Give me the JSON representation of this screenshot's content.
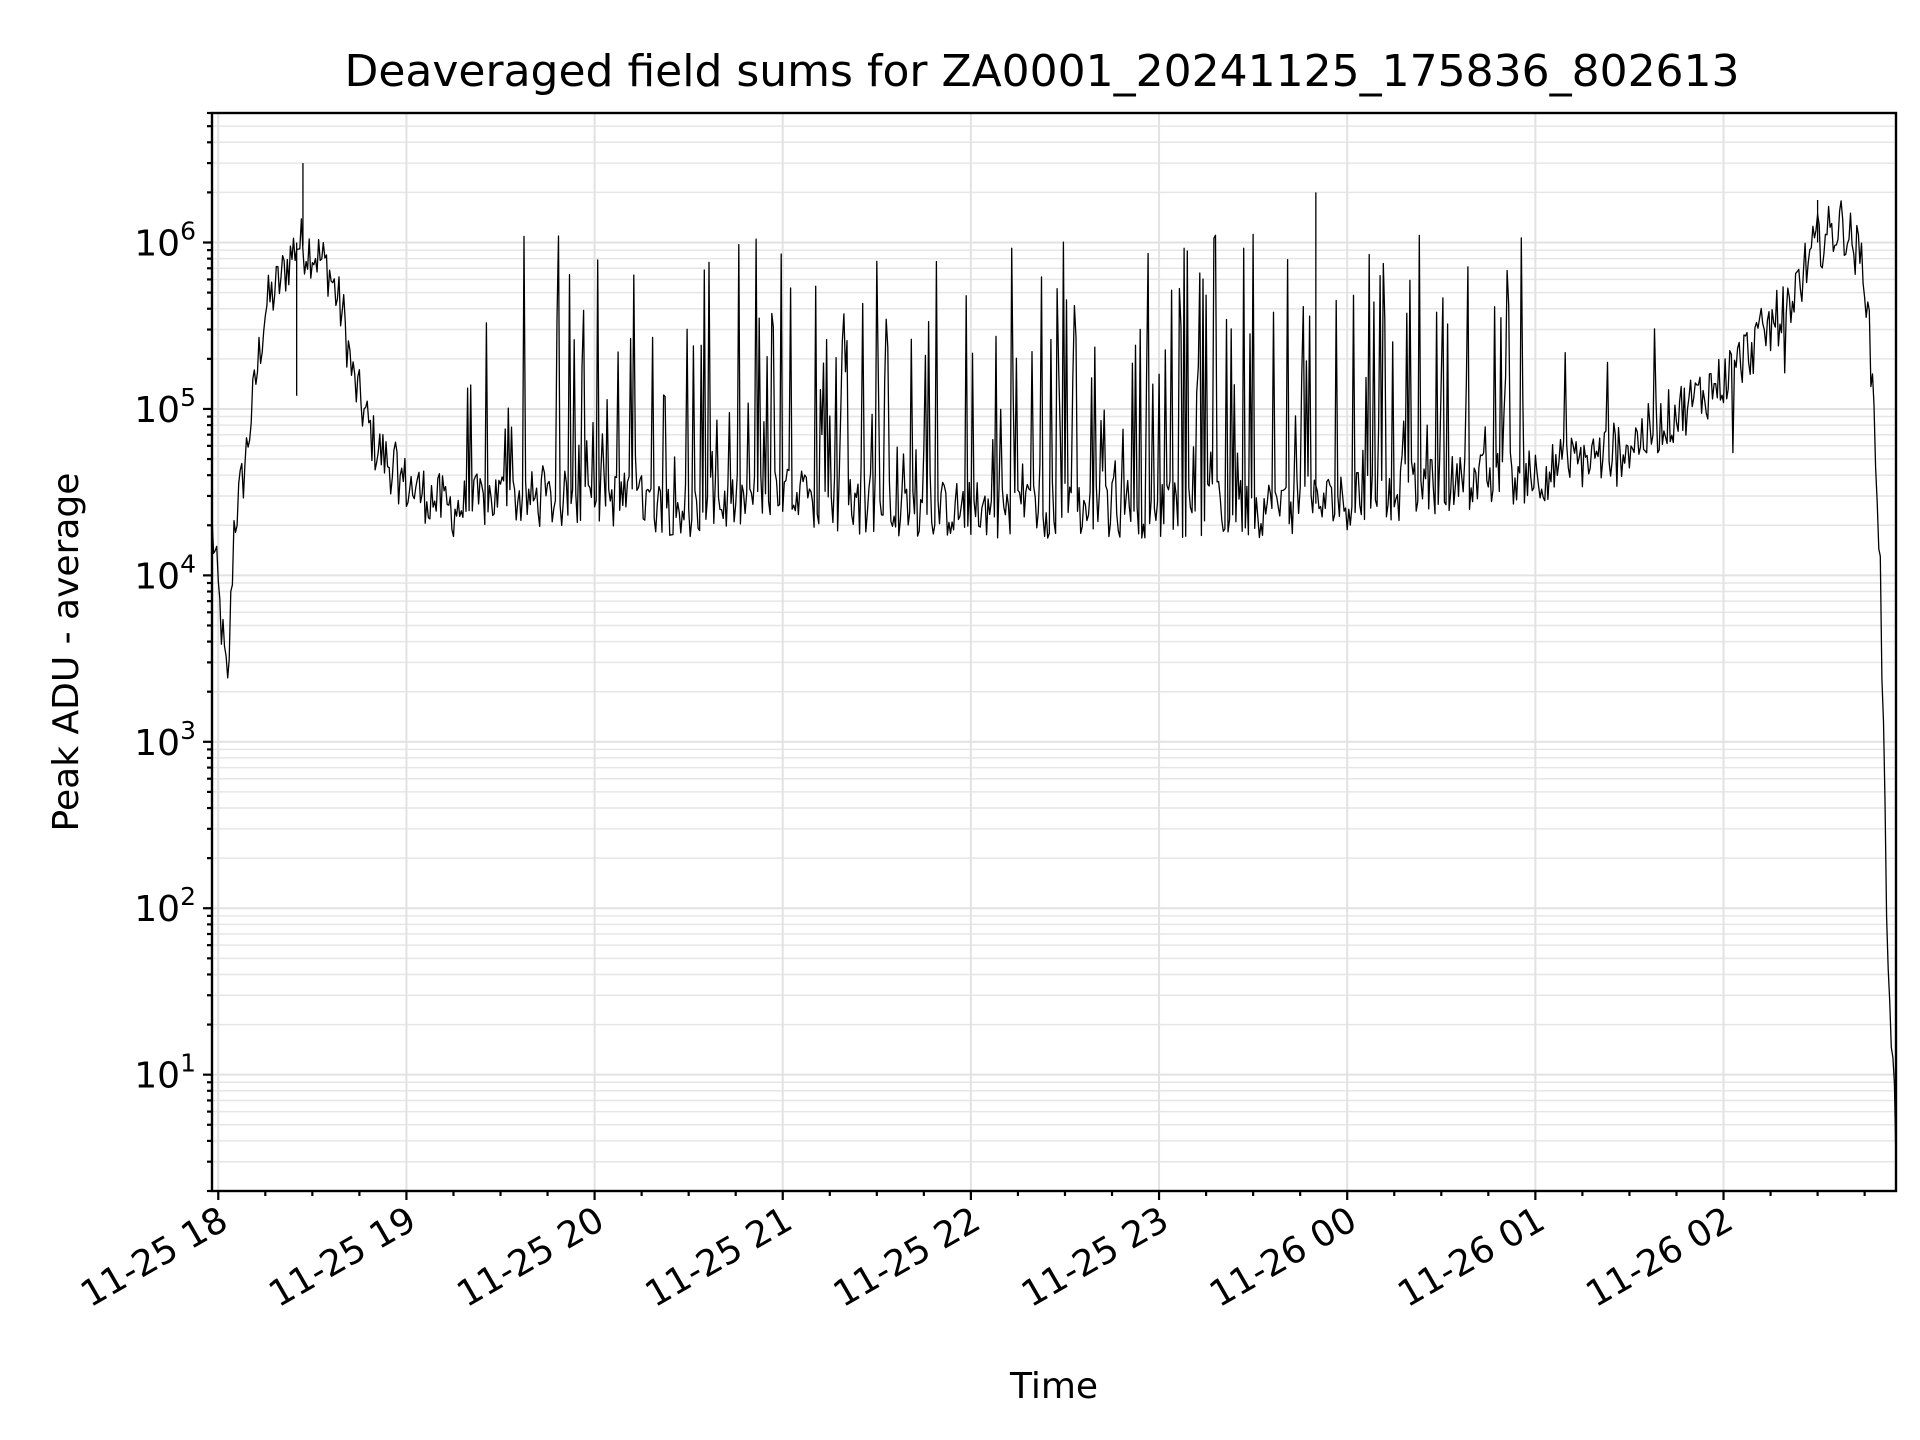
{
  "chart_data": {
    "type": "line",
    "title": "Deaveraged field sums for ZA0001_20241125_175836_802613",
    "xlabel": "Time",
    "ylabel": "Peak ADU - average",
    "yscale": "log",
    "grid": true,
    "legend": "none",
    "line_color": "#000000",
    "x_ticks": [
      "11-25 18",
      "11-25 19",
      "11-25 20",
      "11-25 21",
      "11-25 22",
      "11-25 23",
      "11-26 00",
      "11-26 01",
      "11-26 02"
    ],
    "y_ticks": [
      {
        "base": "10",
        "exp": "1",
        "value": 10
      },
      {
        "base": "10",
        "exp": "2",
        "value": 100
      },
      {
        "base": "10",
        "exp": "3",
        "value": 1000
      },
      {
        "base": "10",
        "exp": "4",
        "value": 10000
      },
      {
        "base": "10",
        "exp": "5",
        "value": 100000
      },
      {
        "base": "10",
        "exp": "6",
        "value": 1000000
      }
    ],
    "xlim": [
      "2024-11-25 17:58",
      "2024-11-26 02:55"
    ],
    "ylim": [
      2,
      6000000
    ],
    "series": [
      {
        "x": [
          "2024-11-25 17:58",
          "2024-11-25 18:03",
          "2024-11-25 18:05",
          "2024-11-25 18:08",
          "2024-11-25 18:12",
          "2024-11-25 18:15",
          "2024-11-25 18:20",
          "2024-11-25 18:25",
          "2024-11-25 18:30",
          "2024-11-25 18:35",
          "2024-11-25 18:40",
          "2024-11-25 18:43",
          "2024-11-25 18:50",
          "2024-11-25 19:00",
          "2024-11-25 19:15",
          "2024-11-25 19:30",
          "2024-11-25 19:45",
          "2024-11-25 20:00",
          "2024-11-25 20:30",
          "2024-11-25 21:00",
          "2024-11-25 21:30",
          "2024-11-25 22:00",
          "2024-11-25 22:30",
          "2024-11-25 23:00",
          "2024-11-25 23:30",
          "2024-11-26 00:00",
          "2024-11-26 00:30",
          "2024-11-26 01:00",
          "2024-11-26 01:30",
          "2024-11-26 02:00",
          "2024-11-26 02:20",
          "2024-11-26 02:30",
          "2024-11-26 02:38",
          "2024-11-26 02:45",
          "2024-11-26 02:48",
          "2024-11-26 02:50",
          "2024-11-26 02:52",
          "2024-11-26 02:55"
        ],
        "y": [
          20000,
          2000,
          20000,
          40000,
          150000,
          400000,
          600000,
          1000000,
          900000,
          700000,
          350000,
          150000,
          60000,
          35000,
          25000,
          30000,
          28000,
          30000,
          25000,
          30000,
          25000,
          25000,
          25000,
          25000,
          25000,
          28000,
          35000,
          40000,
          60000,
          150000,
          400000,
          1000000,
          1300000,
          700000,
          100000,
          10000,
          100,
          4
        ]
      }
    ],
    "spikes": [
      {
        "x": "2024-11-25 18:27",
        "y": 3000000
      },
      {
        "x": "2024-11-25 23:50",
        "y": 2000000
      },
      {
        "x": "2024-11-26 02:30",
        "y": 1800000
      },
      {
        "x": "2024-11-25 18:25",
        "y": 120000
      }
    ]
  }
}
